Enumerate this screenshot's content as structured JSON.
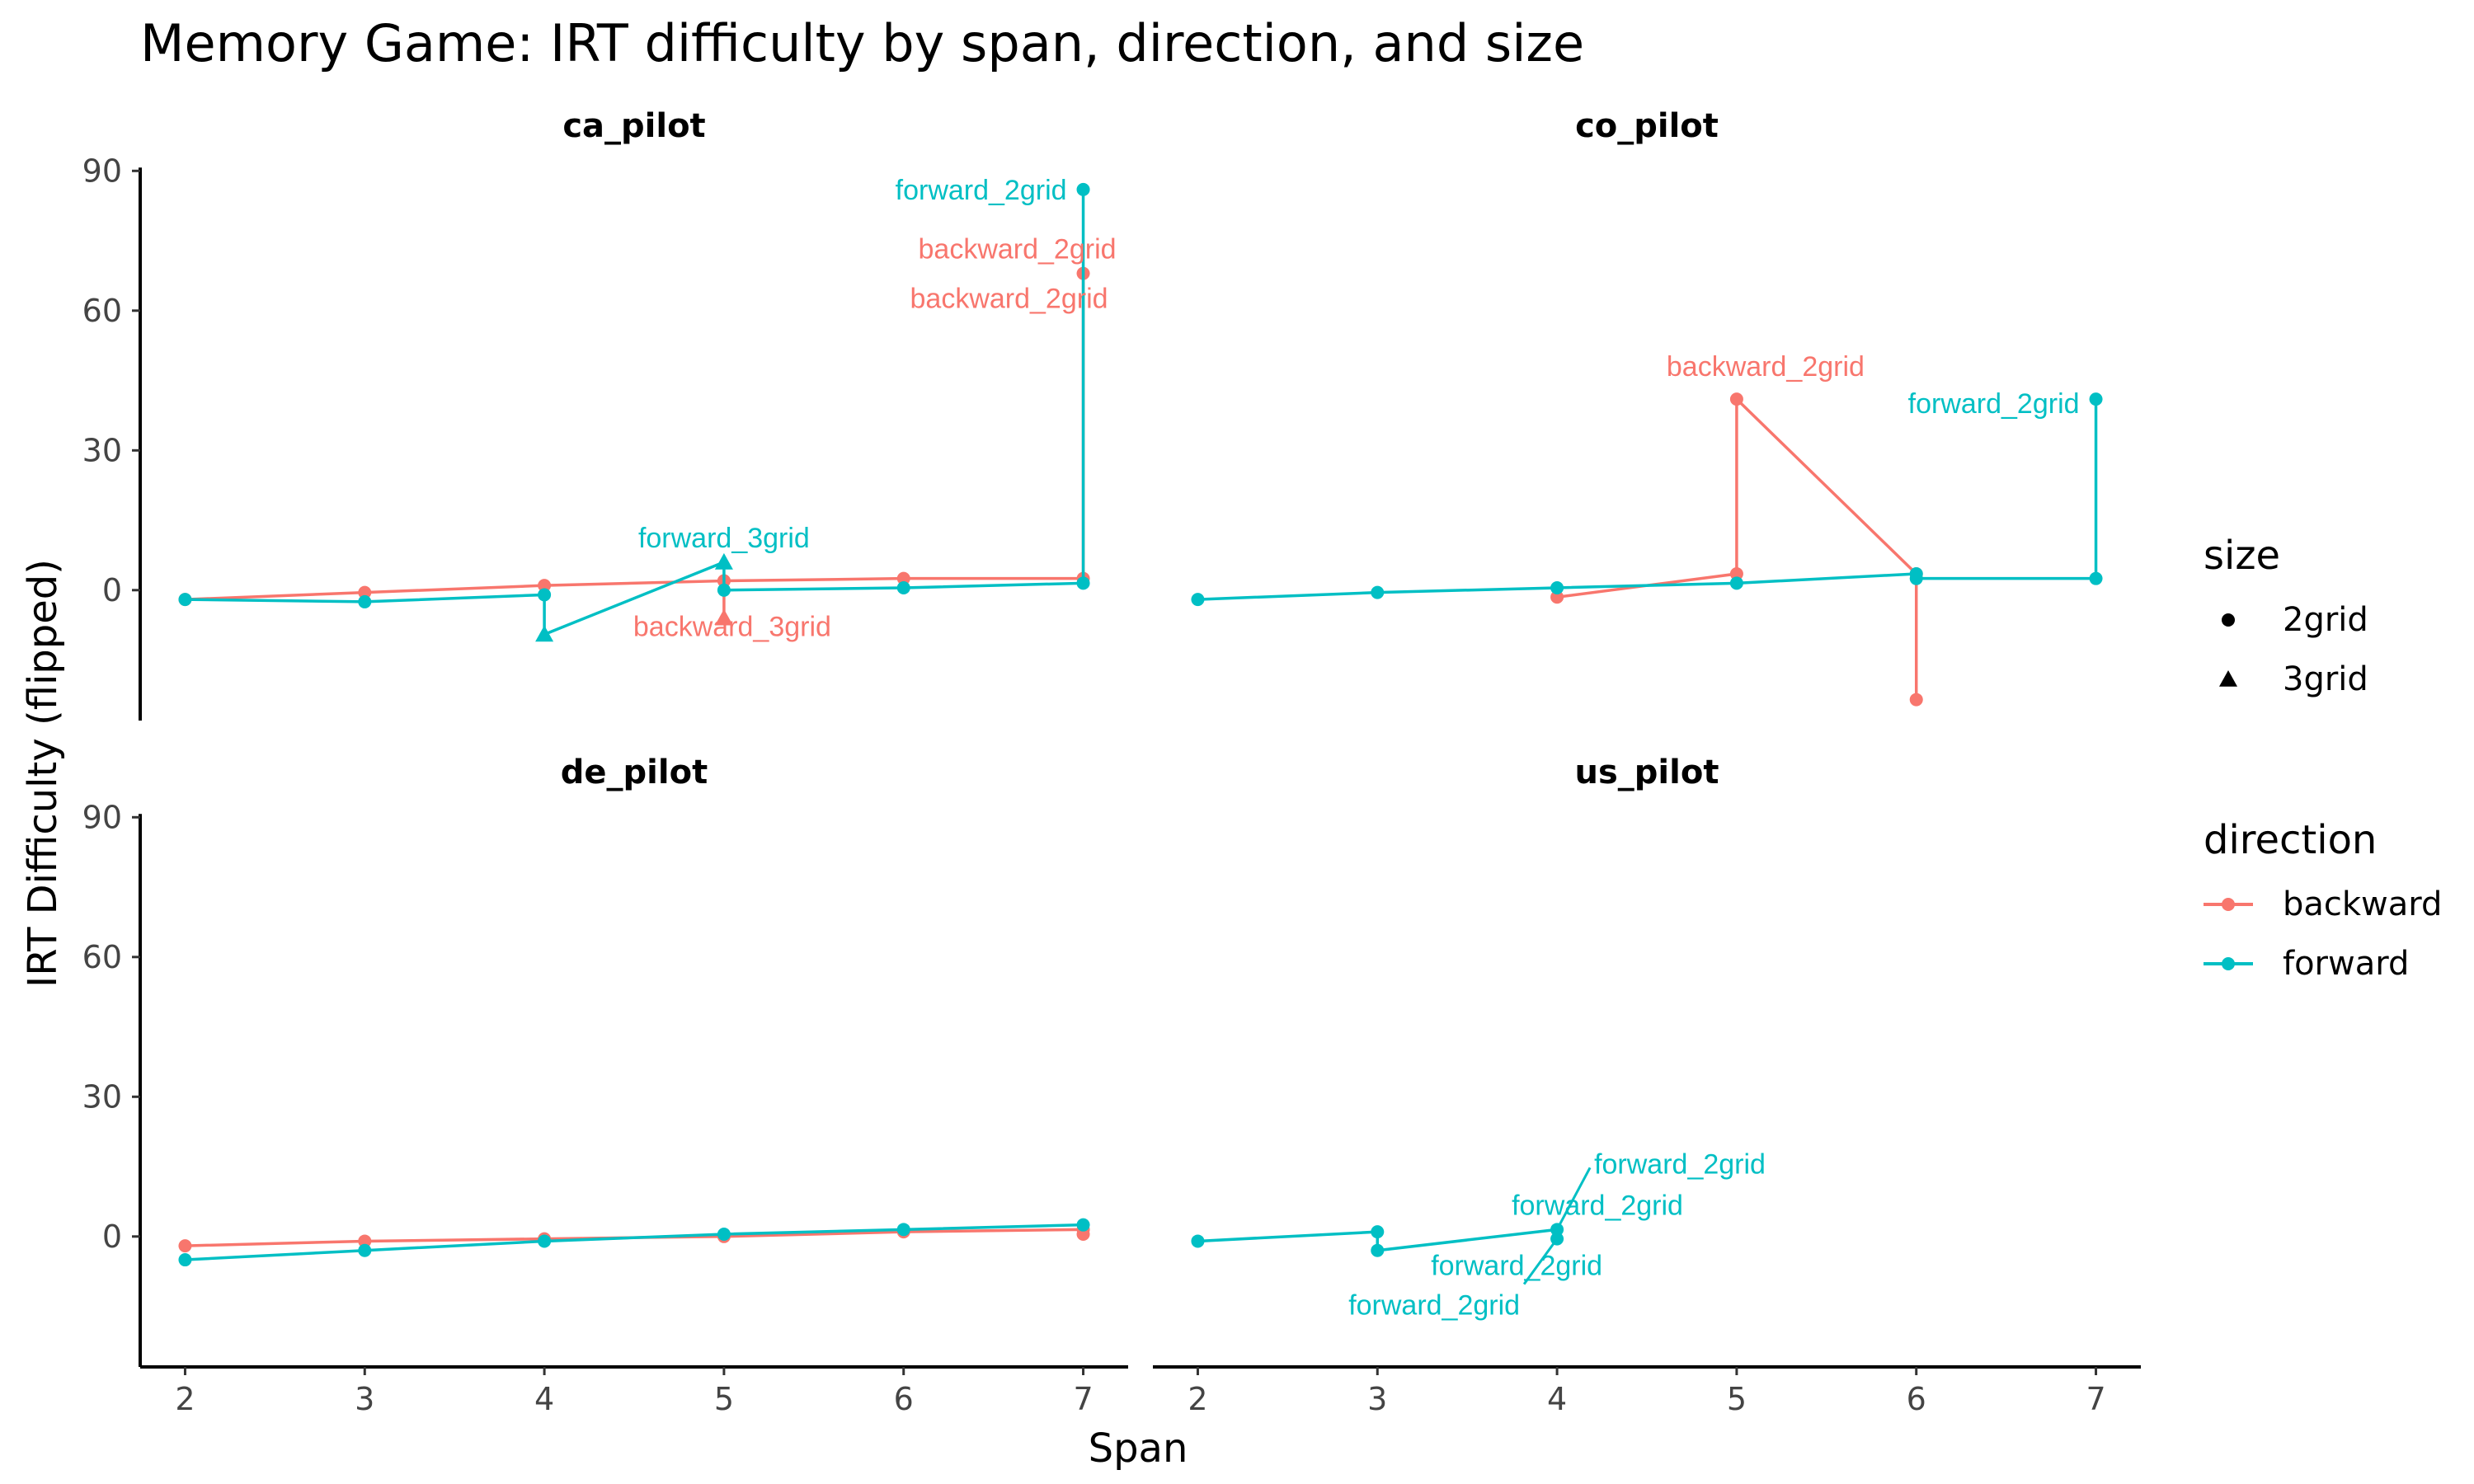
{
  "chart_data": {
    "type": "line",
    "title": "Memory Game: IRT difficulty by span, direction, and size",
    "xlabel": "Span",
    "ylabel": "IRT Difficulty (flipped)",
    "xlim": [
      1.75,
      7.25
    ],
    "ylim": [
      -28,
      92
    ],
    "x_ticks": [
      2,
      3,
      4,
      5,
      6,
      7
    ],
    "y_ticks": [
      0,
      30,
      60,
      90
    ],
    "grid": false,
    "legend_position": "right",
    "colors": {
      "backward": "#F8766D",
      "forward": "#00BFC4"
    },
    "legends": {
      "size": {
        "title": "size",
        "entries": [
          {
            "label": "2grid",
            "shape": "circle"
          },
          {
            "label": "3grid",
            "shape": "triangle"
          }
        ]
      },
      "direction": {
        "title": "direction",
        "entries": [
          {
            "label": "backward"
          },
          {
            "label": "forward"
          }
        ]
      }
    },
    "panels": [
      {
        "name": "ca_pilot",
        "series": [
          {
            "direction": "backward",
            "points": [
              {
                "x": 2,
                "y": -2,
                "size": "2grid"
              },
              {
                "x": 3,
                "y": -0.5,
                "size": "2grid"
              },
              {
                "x": 4,
                "y": 1,
                "size": "2grid"
              },
              {
                "x": 5,
                "y": 2,
                "size": "2grid"
              },
              {
                "x": 5,
                "y": -6,
                "size": "3grid"
              },
              {
                "x": 5,
                "y": 2,
                "size": "2grid"
              },
              {
                "x": 6,
                "y": 2.5,
                "size": "2grid"
              },
              {
                "x": 7,
                "y": 2.5,
                "size": "2grid"
              },
              {
                "x": 7,
                "y": 68,
                "size": "2grid"
              }
            ]
          },
          {
            "direction": "forward",
            "points": [
              {
                "x": 2,
                "y": -2,
                "size": "2grid"
              },
              {
                "x": 3,
                "y": -2.5,
                "size": "2grid"
              },
              {
                "x": 4,
                "y": -1,
                "size": "2grid"
              },
              {
                "x": 4,
                "y": -9.5,
                "size": "3grid"
              },
              {
                "x": 5,
                "y": 6,
                "size": "3grid"
              },
              {
                "x": 5,
                "y": 0,
                "size": "2grid"
              },
              {
                "x": 6,
                "y": 0.5,
                "size": "2grid"
              },
              {
                "x": 7,
                "y": 1.5,
                "size": "2grid"
              },
              {
                "x": 7,
                "y": 86,
                "size": "2grid"
              }
            ]
          }
        ],
        "annotations": [
          {
            "text": "forward_2grid",
            "direction": "forward",
            "x": 7,
            "y": 86
          },
          {
            "text": "backward_2grid",
            "direction": "backward",
            "x": 7,
            "y": 68
          },
          {
            "text": "backward_2grid",
            "direction": "backward",
            "x": 7,
            "y": 68
          },
          {
            "text": "forward_3grid",
            "direction": "forward",
            "x": 5,
            "y": 6
          },
          {
            "text": "backward_3grid",
            "direction": "backward",
            "x": 5,
            "y": -6
          }
        ]
      },
      {
        "name": "co_pilot",
        "series": [
          {
            "direction": "backward",
            "points": [
              {
                "x": 4,
                "y": -1.5,
                "size": "2grid"
              },
              {
                "x": 5,
                "y": 3.5,
                "size": "2grid"
              },
              {
                "x": 5,
                "y": 41,
                "size": "2grid"
              },
              {
                "x": 6,
                "y": 3.5,
                "size": "2grid"
              },
              {
                "x": 6,
                "y": -23.5,
                "size": "2grid"
              }
            ]
          },
          {
            "direction": "forward",
            "points": [
              {
                "x": 2,
                "y": -2,
                "size": "2grid"
              },
              {
                "x": 3,
                "y": -0.5,
                "size": "2grid"
              },
              {
                "x": 4,
                "y": 0.5,
                "size": "2grid"
              },
              {
                "x": 5,
                "y": 1.5,
                "size": "2grid"
              },
              {
                "x": 6,
                "y": 3.5,
                "size": "2grid"
              },
              {
                "x": 6,
                "y": 2.5,
                "size": "2grid"
              },
              {
                "x": 7,
                "y": 2.5,
                "size": "2grid"
              },
              {
                "x": 7,
                "y": 41,
                "size": "2grid"
              }
            ]
          }
        ],
        "annotations": [
          {
            "text": "backward_2grid",
            "direction": "backward",
            "x": 5,
            "y": 41
          },
          {
            "text": "forward_2grid",
            "direction": "forward",
            "x": 7,
            "y": 41
          }
        ]
      },
      {
        "name": "de_pilot",
        "series": [
          {
            "direction": "backward",
            "points": [
              {
                "x": 2,
                "y": -2,
                "size": "2grid"
              },
              {
                "x": 3,
                "y": -1,
                "size": "2grid"
              },
              {
                "x": 4,
                "y": -0.5,
                "size": "2grid"
              },
              {
                "x": 5,
                "y": 0,
                "size": "2grid"
              },
              {
                "x": 6,
                "y": 1,
                "size": "2grid"
              },
              {
                "x": 7,
                "y": 1.5,
                "size": "2grid"
              },
              {
                "x": 7,
                "y": 0.5,
                "size": "2grid"
              }
            ]
          },
          {
            "direction": "forward",
            "points": [
              {
                "x": 2,
                "y": -5,
                "size": "2grid"
              },
              {
                "x": 3,
                "y": -3,
                "size": "2grid"
              },
              {
                "x": 4,
                "y": -1,
                "size": "2grid"
              },
              {
                "x": 5,
                "y": 0.5,
                "size": "2grid"
              },
              {
                "x": 6,
                "y": 1.5,
                "size": "2grid"
              },
              {
                "x": 7,
                "y": 2.5,
                "size": "2grid"
              }
            ]
          }
        ],
        "annotations": []
      },
      {
        "name": "us_pilot",
        "series": [
          {
            "direction": "forward",
            "points": [
              {
                "x": 2,
                "y": -1,
                "size": "2grid"
              },
              {
                "x": 3,
                "y": 1,
                "size": "2grid"
              },
              {
                "x": 3,
                "y": -3,
                "size": "2grid"
              },
              {
                "x": 4,
                "y": 1.5,
                "size": "2grid"
              },
              {
                "x": 4,
                "y": -0.5,
                "size": "2grid"
              }
            ]
          }
        ],
        "annotations": [
          {
            "text": "forward_2grid",
            "direction": "forward",
            "x": 4,
            "y": 1.5
          },
          {
            "text": "forward_2grid",
            "direction": "forward",
            "x": 4,
            "y": 1.5
          },
          {
            "text": "forward_2grid",
            "direction": "forward",
            "x": 4,
            "y": -0.5
          },
          {
            "text": "forward_2grid",
            "direction": "forward",
            "x": 4,
            "y": -0.5
          }
        ]
      }
    ]
  }
}
